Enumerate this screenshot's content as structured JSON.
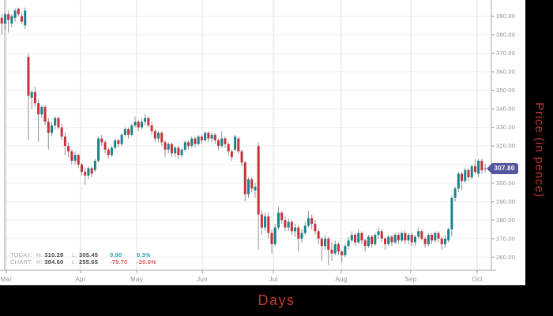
{
  "badge": {
    "label": "307.80",
    "color": "#55569d"
  },
  "legend": {
    "today": {
      "label": "TODAY:",
      "high_label": "H:",
      "high": "310.29",
      "low_label": "L:",
      "low": "305.45",
      "change": "0.90",
      "change_pct": "0.3%"
    },
    "chart": {
      "label": "CHART:",
      "high_label": "H:",
      "high": "394.60",
      "low_label": "L:",
      "low": "255.65",
      "change": "-79.70",
      "change_pct": "-20.6%"
    }
  },
  "chart_data": {
    "type": "candlestick",
    "title": "",
    "xlabel": "Days",
    "ylabel": "Price (in pence)",
    "grid": true,
    "ylim": [
      252.9,
      398.7
    ],
    "y_ticks": [
      "390.00",
      "380.00",
      "370.00",
      "360.00",
      "350.00",
      "340.00",
      "330.00",
      "320.00",
      "310.00",
      "300.00",
      "290.00",
      "280.00",
      "270.00",
      "260.00"
    ],
    "months": [
      {
        "label": "Mar",
        "x": 8
      },
      {
        "label": "Apr",
        "x": 102
      },
      {
        "label": "May",
        "x": 173
      },
      {
        "label": "Jun",
        "x": 256
      },
      {
        "label": "Jul",
        "x": 346
      },
      {
        "label": "Aug",
        "x": 432
      },
      {
        "label": "Sep",
        "x": 520
      },
      {
        "label": "Oct",
        "x": 604
      }
    ],
    "last_price": 307.8,
    "colors": {
      "up": "#17838f",
      "down": "#c9303a",
      "wick": "#8f8f8f",
      "grid_h": "#eeeeee",
      "grid_v": "#e2e2e2",
      "axis": "#a0a0a0",
      "tick_text": "#8f8f8f"
    },
    "candles": [
      [
        389,
        391,
        380,
        386
      ],
      [
        386,
        392,
        383,
        391
      ],
      [
        391,
        393,
        381,
        388
      ],
      [
        386,
        391,
        384,
        390
      ],
      [
        389,
        394,
        387,
        393
      ],
      [
        394,
        394.6,
        390,
        391
      ],
      [
        390,
        392,
        386,
        387
      ],
      [
        385,
        394.6,
        383,
        393
      ],
      [
        368,
        370,
        323,
        347
      ],
      [
        346,
        350,
        340,
        349
      ],
      [
        349,
        352,
        341,
        343
      ],
      [
        343,
        345,
        322,
        337
      ],
      [
        337,
        342,
        335,
        341
      ],
      [
        341,
        342,
        331,
        333
      ],
      [
        333,
        335,
        318,
        327
      ],
      [
        327,
        333,
        325,
        331
      ],
      [
        331,
        336,
        329,
        335
      ],
      [
        335,
        336,
        329,
        330
      ],
      [
        330,
        332,
        323,
        325
      ],
      [
        325,
        327,
        315,
        320
      ],
      [
        320,
        322,
        314,
        317
      ],
      [
        317,
        318,
        310,
        312
      ],
      [
        312,
        317,
        310,
        315
      ],
      [
        315,
        316,
        308,
        310
      ],
      [
        310,
        311,
        304,
        306
      ],
      [
        306,
        308,
        299,
        304
      ],
      [
        304,
        309,
        302,
        308
      ],
      [
        308,
        309,
        303,
        305
      ],
      [
        307,
        313,
        306,
        312
      ],
      [
        312,
        325,
        311,
        324
      ],
      [
        324,
        326,
        320,
        322
      ],
      [
        322,
        323,
        316,
        318
      ],
      [
        318,
        319,
        313,
        315
      ],
      [
        315,
        320,
        314,
        319
      ],
      [
        319,
        324,
        318,
        323
      ],
      [
        323,
        324,
        319,
        321
      ],
      [
        321,
        327,
        320,
        326
      ],
      [
        326,
        330,
        325,
        329
      ],
      [
        329,
        330,
        324,
        326
      ],
      [
        326,
        332,
        325,
        331
      ],
      [
        331,
        336,
        330,
        333
      ],
      [
        333,
        334,
        328,
        330
      ],
      [
        330,
        335,
        329,
        333
      ],
      [
        333,
        337,
        331,
        335
      ],
      [
        335,
        336,
        330,
        331
      ],
      [
        331,
        333,
        326,
        328
      ],
      [
        328,
        329,
        322,
        324
      ],
      [
        324,
        328,
        322,
        327
      ],
      [
        327,
        328,
        320,
        322
      ],
      [
        322,
        323,
        314,
        318
      ],
      [
        318,
        322,
        316,
        321
      ],
      [
        321,
        322,
        314,
        316
      ],
      [
        316,
        320,
        314,
        319
      ],
      [
        319,
        320,
        313,
        315
      ],
      [
        315,
        319,
        314,
        318
      ],
      [
        318,
        323,
        317,
        322
      ],
      [
        322,
        323,
        318,
        320
      ],
      [
        320,
        325,
        319,
        324
      ],
      [
        324,
        325,
        319,
        321
      ],
      [
        321,
        326,
        320,
        325
      ],
      [
        325,
        326,
        321,
        323
      ],
      [
        323,
        328,
        322,
        327
      ],
      [
        327,
        328,
        322,
        324
      ],
      [
        324,
        327,
        322,
        326
      ],
      [
        326,
        327,
        321,
        323
      ],
      [
        323,
        324,
        318,
        320
      ],
      [
        320,
        328,
        319,
        324
      ],
      [
        324,
        325,
        319,
        321
      ],
      [
        321,
        322,
        315,
        317
      ],
      [
        317,
        318,
        312,
        314
      ],
      [
        318,
        326,
        317,
        325
      ],
      [
        324,
        325,
        316,
        317
      ],
      [
        317,
        318,
        309,
        311
      ],
      [
        311,
        312,
        290,
        294
      ],
      [
        294,
        303,
        292,
        302
      ],
      [
        302,
        303,
        295,
        297
      ],
      [
        296,
        300,
        292,
        298
      ],
      [
        320,
        322,
        264,
        283
      ],
      [
        283,
        285,
        272,
        276
      ],
      [
        276,
        284,
        274,
        282
      ],
      [
        282,
        284,
        270,
        273
      ],
      [
        273,
        275,
        262,
        267
      ],
      [
        267,
        278,
        266,
        276
      ],
      [
        276,
        287,
        275,
        284
      ],
      [
        284,
        285,
        278,
        280
      ],
      [
        280,
        282,
        274,
        276
      ],
      [
        276,
        281,
        274,
        279
      ],
      [
        279,
        280,
        272,
        274
      ],
      [
        274,
        278,
        271,
        276
      ],
      [
        276,
        277,
        263,
        270
      ],
      [
        270,
        275,
        268,
        273
      ],
      [
        273,
        279,
        272,
        277
      ],
      [
        277,
        285,
        276,
        281
      ],
      [
        281,
        283,
        275,
        278
      ],
      [
        278,
        280,
        272,
        274
      ],
      [
        274,
        275,
        267,
        270
      ],
      [
        270,
        271,
        258,
        266
      ],
      [
        266,
        272,
        264,
        270
      ],
      [
        270,
        271,
        255.7,
        264
      ],
      [
        264,
        268,
        258,
        262
      ],
      [
        262,
        269,
        261,
        267
      ],
      [
        267,
        268,
        261,
        263
      ],
      [
        263,
        264,
        257,
        261
      ],
      [
        261,
        267,
        260,
        266
      ],
      [
        266,
        271,
        264,
        269
      ],
      [
        269,
        274,
        268,
        272
      ],
      [
        272,
        273,
        266,
        268
      ],
      [
        268,
        275,
        267,
        273
      ],
      [
        273,
        274,
        267,
        269
      ],
      [
        269,
        270,
        263,
        266
      ],
      [
        266,
        272,
        265,
        271
      ],
      [
        271,
        272,
        265,
        267
      ],
      [
        267,
        273,
        266,
        272
      ],
      [
        272,
        276,
        270,
        274
      ],
      [
        274,
        275,
        268,
        270
      ],
      [
        270,
        271,
        264,
        267
      ],
      [
        267,
        272,
        266,
        271
      ],
      [
        271,
        272,
        266,
        268
      ],
      [
        268,
        273,
        267,
        272
      ],
      [
        272,
        273,
        267,
        269
      ],
      [
        269,
        274,
        268,
        273
      ],
      [
        273,
        274,
        267,
        269
      ],
      [
        269,
        273,
        267,
        272
      ],
      [
        272,
        273,
        266,
        268
      ],
      [
        268,
        272,
        266,
        271
      ],
      [
        271,
        276,
        270,
        274
      ],
      [
        274,
        275,
        269,
        270
      ],
      [
        270,
        271,
        265,
        267
      ],
      [
        267,
        273,
        266,
        272
      ],
      [
        272,
        273,
        267,
        269
      ],
      [
        269,
        274,
        268,
        273
      ],
      [
        273,
        274,
        268,
        270
      ],
      [
        270,
        271,
        264,
        267
      ],
      [
        267,
        272,
        265,
        270
      ],
      [
        269,
        276,
        268,
        275
      ],
      [
        275,
        293,
        271,
        292
      ],
      [
        292,
        298,
        290,
        297
      ],
      [
        297,
        306,
        295,
        305
      ],
      [
        305,
        306,
        296,
        301
      ],
      [
        301,
        308,
        300,
        307
      ],
      [
        307,
        308,
        301,
        303
      ],
      [
        303,
        310,
        302,
        309
      ],
      [
        309,
        313,
        305,
        306
      ],
      [
        305,
        313,
        303,
        312
      ],
      [
        312,
        313,
        305,
        306.9
      ],
      [
        308,
        310.3,
        305.5,
        307.8
      ]
    ]
  }
}
